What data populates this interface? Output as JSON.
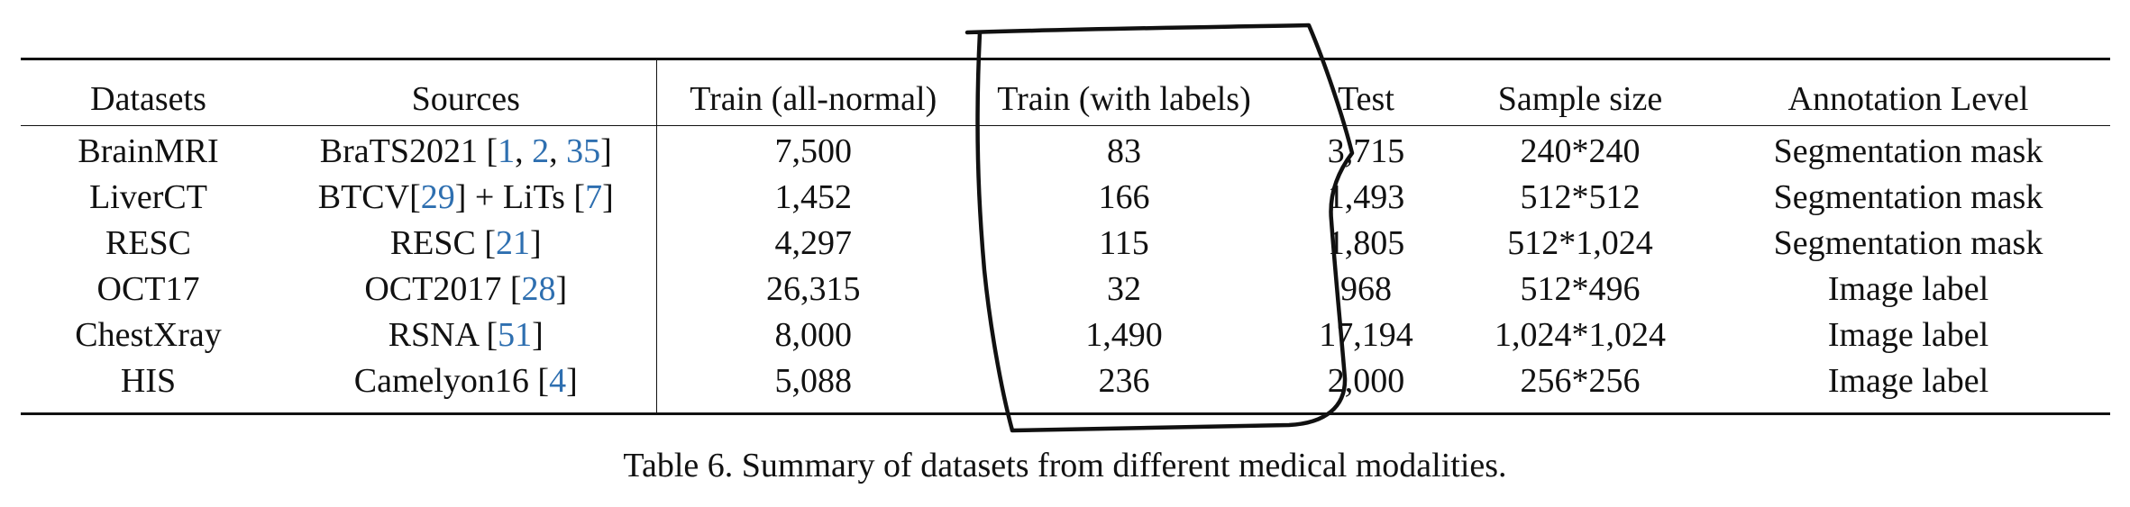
{
  "table": {
    "columns": [
      "Datasets",
      "Sources",
      "Train (all-normal)",
      "Train (with labels)",
      "Test",
      "Sample size",
      "Annotation Level"
    ],
    "rows": [
      {
        "dataset": "BrainMRI",
        "source": {
          "text": "BraTS2021 [",
          "cites": [
            "1",
            "2",
            "35"
          ],
          "suffix": "]"
        },
        "train_normal": "7,500",
        "train_labels": "83",
        "test": "3,715",
        "sample_size": "240*240",
        "annotation": "Segmentation mask"
      },
      {
        "dataset": "LiverCT",
        "source": {
          "pre": "BTCV[",
          "cite1": "29",
          "mid": "] + LiTs [",
          "cite2": "7",
          "post": "]"
        },
        "train_normal": "1,452",
        "train_labels": "166",
        "test": "1,493",
        "sample_size": "512*512",
        "annotation": "Segmentation mask"
      },
      {
        "dataset": "RESC",
        "source": {
          "pre": "RESC [",
          "cite": "21",
          "post": "]"
        },
        "train_normal": "4,297",
        "train_labels": "115",
        "test": "1,805",
        "sample_size": "512*1,024",
        "annotation": "Segmentation mask"
      },
      {
        "dataset": "OCT17",
        "source": {
          "pre": "OCT2017 [",
          "cite": "28",
          "post": "]"
        },
        "train_normal": "26,315",
        "train_labels": "32",
        "test": "968",
        "sample_size": "512*496",
        "annotation": "Image label"
      },
      {
        "dataset": "ChestXray",
        "source": {
          "pre": "RSNA [",
          "cite": "51",
          "post": "]"
        },
        "train_normal": "8,000",
        "train_labels": "1,490",
        "test": "17,194",
        "sample_size": "1,024*1,024",
        "annotation": "Image label"
      },
      {
        "dataset": "HIS",
        "source": {
          "pre": "Camelyon16 [",
          "cite": "4",
          "post": "]"
        },
        "train_normal": "5,088",
        "train_labels": "236",
        "test": "2,000",
        "sample_size": "256*256",
        "annotation": "Image label"
      }
    ]
  },
  "caption": "Table 6. Summary of datasets from different medical modalities.",
  "annotation": {
    "shape": "hand-drawn-outline",
    "target": "Train (with labels)",
    "color": "#111111"
  },
  "colors": {
    "citation": "#2e6fb0",
    "text": "#111111"
  }
}
